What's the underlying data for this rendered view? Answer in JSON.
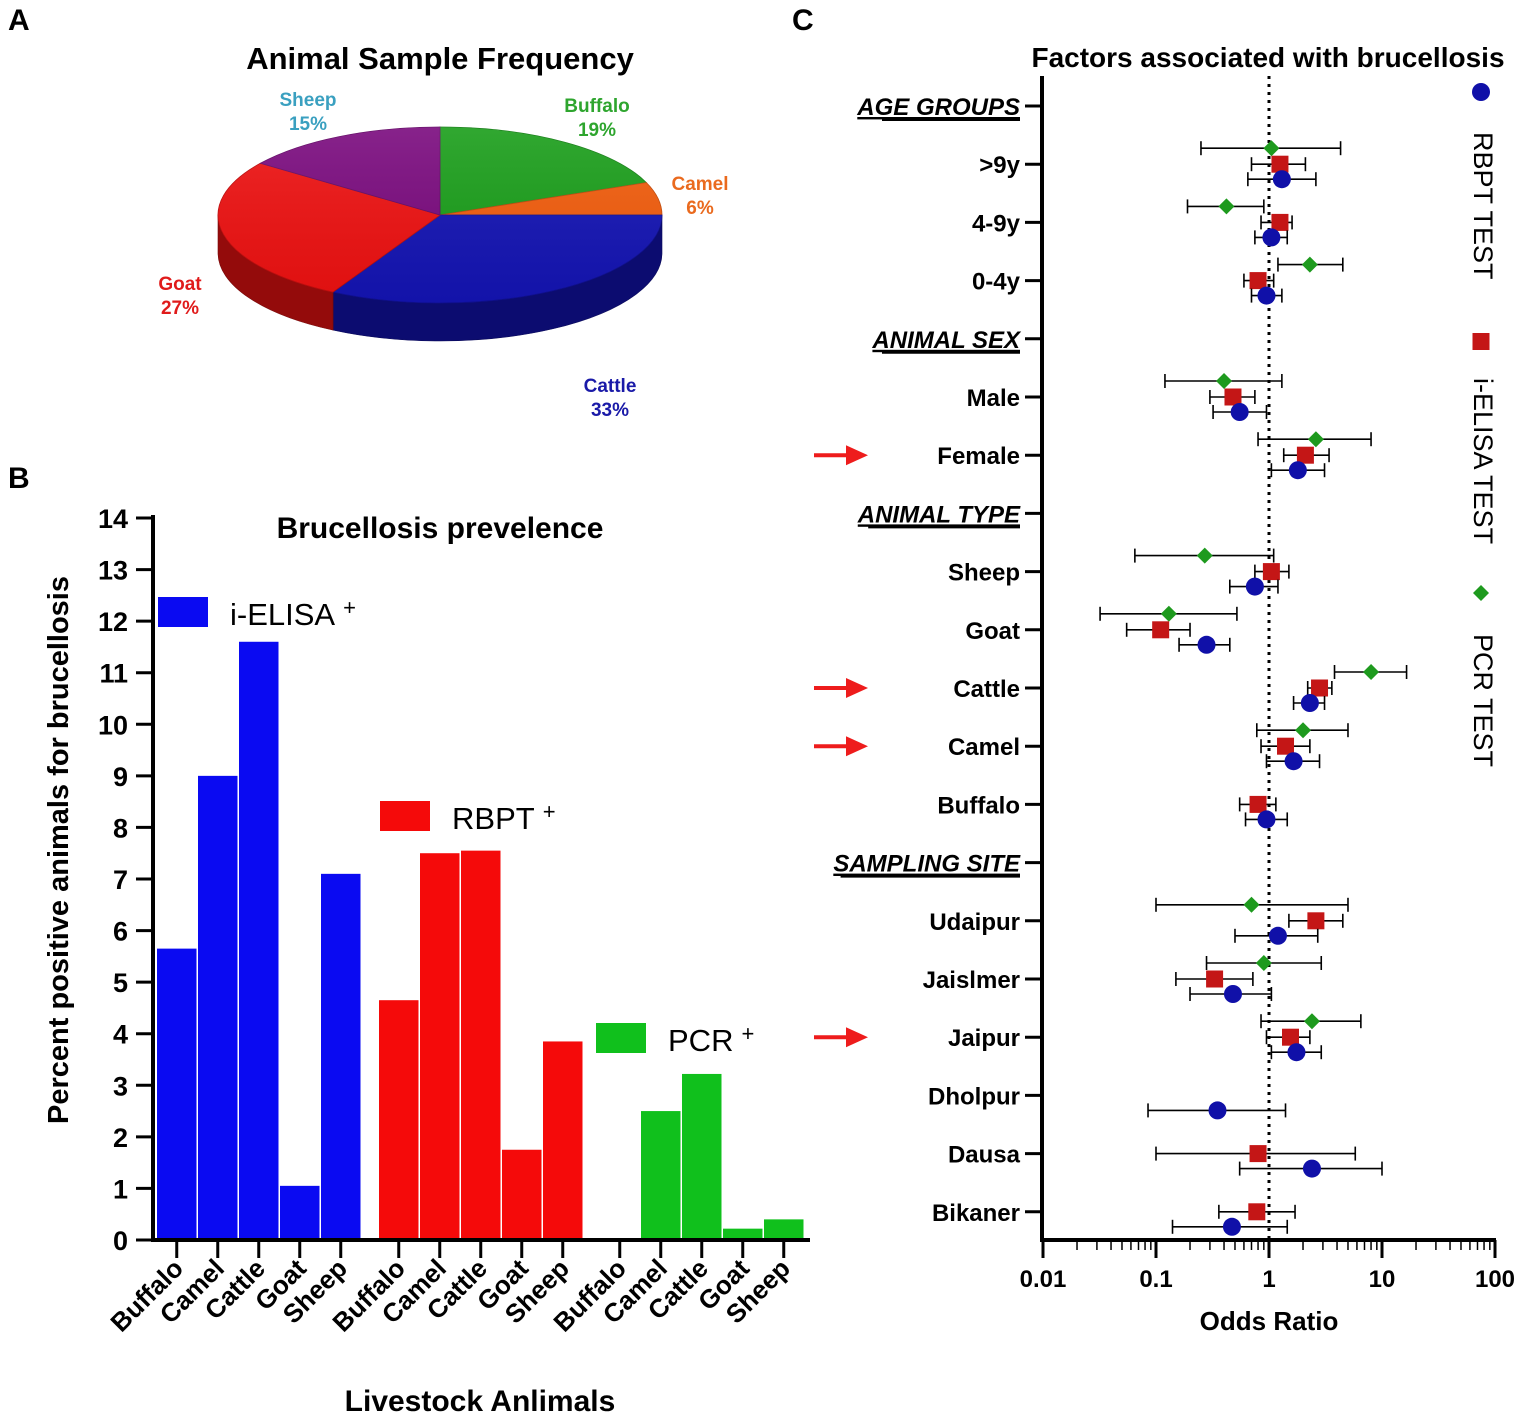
{
  "panels": {
    "a": "A",
    "b": "B",
    "c": "C"
  },
  "chart_data": [
    {
      "type": "pie",
      "title": "Animal Sample Frequency",
      "slices": [
        {
          "label": "Buffalo",
          "value": 19,
          "value_label": "19%",
          "color": "#1a9e1a",
          "label_color": "#2ea52e"
        },
        {
          "label": "Camel",
          "value": 6,
          "value_label": "6%",
          "color": "#f25c0c",
          "label_color": "#ea6a1e"
        },
        {
          "label": "Cattle",
          "value": 33,
          "value_label": "33%",
          "color": "#1414b4",
          "label_color": "#1a1aa8"
        },
        {
          "label": "Goat",
          "value": 27,
          "value_label": "27%",
          "color": "#ee1111",
          "label_color": "#e01b1b"
        },
        {
          "label": "Sheep",
          "value": 15,
          "value_label": "15%",
          "color": "#7a0a7e",
          "label_color": "#3aa0c0"
        }
      ]
    },
    {
      "type": "bar",
      "title": "Brucellosis prevelence",
      "xlabel": "Livestock Anlimals",
      "ylabel": "Percent positive animals for brucellosis",
      "ylim": [
        0,
        14
      ],
      "yticks": [
        "0",
        "1",
        "2",
        "3",
        "4",
        "5",
        "6",
        "7",
        "8",
        "9",
        "10",
        "11",
        "12",
        "13",
        "14"
      ],
      "categories": [
        "Buffalo",
        "Camel",
        "Cattle",
        "Goat",
        "Sheep"
      ],
      "series": [
        {
          "name": "i-ELISA",
          "legend": "i-ELISA",
          "sup": "+",
          "color": "#0a0af2",
          "values": [
            5.65,
            9.0,
            11.6,
            1.05,
            7.1
          ]
        },
        {
          "name": "RBPT",
          "legend": "RBPT",
          "sup": "+",
          "color": "#f50a0a",
          "values": [
            4.65,
            7.5,
            7.55,
            1.75,
            3.85
          ]
        },
        {
          "name": "PCR",
          "legend": "PCR",
          "sup": "+",
          "color": "#10c01c",
          "values": [
            0,
            2.5,
            3.22,
            0.22,
            0.4
          ]
        }
      ]
    },
    {
      "type": "scatter",
      "subtype": "forest",
      "title": "Factors associated with brucellosis",
      "xlabel": "Odds Ratio",
      "xscale": "log",
      "xlim": [
        0.01,
        100
      ],
      "xticks": [
        "0.01",
        "0.1",
        "1",
        "10",
        "100"
      ],
      "reference_line": 1,
      "legend": [
        {
          "name": "RBPT TEST",
          "marker": "circle",
          "color": "#1010a8"
        },
        {
          "name": "i-ELISA TEST",
          "marker": "square",
          "color": "#c41616"
        },
        {
          "name": "PCR TEST",
          "marker": "diamond",
          "color": "#1e9a1e"
        }
      ],
      "rows": [
        {
          "label": "AGE GROUPS",
          "header": true
        },
        {
          "label": ">9y",
          "rbpt": [
            1.3,
            0.65,
            2.6
          ],
          "ielisa": [
            1.25,
            0.7,
            2.1
          ],
          "pcr": [
            1.05,
            0.25,
            4.3
          ]
        },
        {
          "label": "4-9y",
          "rbpt": [
            1.05,
            0.75,
            1.45
          ],
          "ielisa": [
            1.25,
            0.85,
            1.6
          ],
          "pcr": [
            0.42,
            0.19,
            0.9
          ]
        },
        {
          "label": "0-4y",
          "rbpt": [
            0.95,
            0.7,
            1.3
          ],
          "ielisa": [
            0.8,
            0.6,
            1.1
          ],
          "pcr": [
            2.3,
            1.2,
            4.5
          ]
        },
        {
          "label": "ANIMAL SEX",
          "header": true
        },
        {
          "label": "Male",
          "rbpt": [
            0.55,
            0.32,
            0.95
          ],
          "ielisa": [
            0.48,
            0.3,
            0.75
          ],
          "pcr": [
            0.4,
            0.12,
            1.3
          ]
        },
        {
          "label": "Female",
          "arrow": true,
          "rbpt": [
            1.8,
            1.05,
            3.1
          ],
          "ielisa": [
            2.1,
            1.35,
            3.4
          ],
          "pcr": [
            2.6,
            0.8,
            8.0
          ]
        },
        {
          "label": "ANIMAL TYPE",
          "header": true
        },
        {
          "label": "Sheep",
          "rbpt": [
            0.75,
            0.45,
            1.2
          ],
          "ielisa": [
            1.05,
            0.75,
            1.5
          ],
          "pcr": [
            0.27,
            0.065,
            1.1
          ]
        },
        {
          "label": "Goat",
          "rbpt": [
            0.28,
            0.16,
            0.45
          ],
          "ielisa": [
            0.11,
            0.055,
            0.2
          ],
          "pcr": [
            0.13,
            0.032,
            0.52
          ]
        },
        {
          "label": "Cattle",
          "arrow": true,
          "rbpt": [
            2.3,
            1.65,
            3.1
          ],
          "ielisa": [
            2.8,
            2.2,
            3.6
          ],
          "pcr": [
            8.0,
            3.8,
            16.5
          ]
        },
        {
          "label": "Camel",
          "arrow": true,
          "rbpt": [
            1.65,
            0.95,
            2.8
          ],
          "ielisa": [
            1.4,
            0.85,
            2.3
          ],
          "pcr": [
            2.0,
            0.78,
            5.0
          ]
        },
        {
          "label": "Buffalo",
          "rbpt": [
            0.95,
            0.62,
            1.45
          ],
          "ielisa": [
            0.8,
            0.55,
            1.15
          ],
          "pcr": null
        },
        {
          "label": "SAMPLING SITE",
          "header": true
        },
        {
          "label": "Udaipur",
          "rbpt": [
            1.2,
            0.5,
            2.7
          ],
          "ielisa": [
            2.6,
            1.5,
            4.5
          ],
          "pcr": [
            0.7,
            0.1,
            5.0
          ]
        },
        {
          "label": "Jaislmer",
          "rbpt": [
            0.48,
            0.2,
            1.05
          ],
          "ielisa": [
            0.33,
            0.15,
            0.72
          ],
          "pcr": [
            0.9,
            0.28,
            2.9
          ]
        },
        {
          "label": "Jaipur",
          "arrow": true,
          "rbpt": [
            1.75,
            1.05,
            2.9
          ],
          "ielisa": [
            1.55,
            0.95,
            2.3
          ],
          "pcr": [
            2.4,
            0.85,
            6.5
          ]
        },
        {
          "label": "Dholpur",
          "rbpt": [
            0.35,
            0.085,
            1.4
          ],
          "ielisa": null,
          "pcr": null
        },
        {
          "label": "Dausa",
          "rbpt": [
            2.4,
            0.55,
            10.0
          ],
          "ielisa": [
            0.8,
            0.1,
            5.8
          ],
          "pcr": null
        },
        {
          "label": "Bikaner",
          "rbpt": [
            0.47,
            0.14,
            1.45
          ],
          "ielisa": [
            0.78,
            0.36,
            1.7
          ],
          "pcr": null
        }
      ]
    }
  ]
}
